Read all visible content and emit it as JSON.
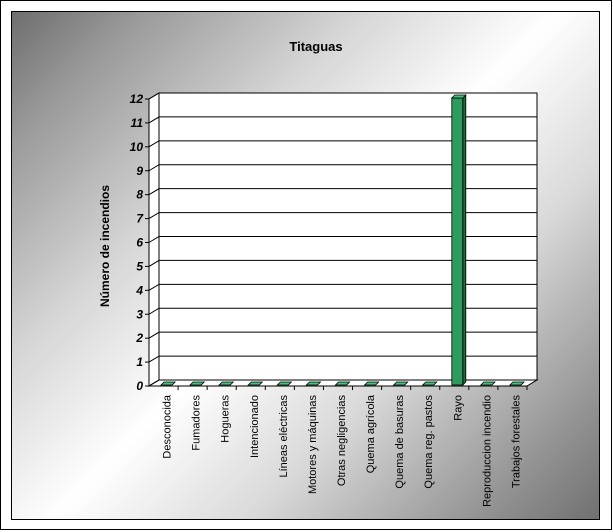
{
  "chart_data": {
    "type": "bar",
    "title": "Titaguas",
    "ylabel": "Número de incendios",
    "xlabel": "",
    "categories": [
      "Desconocida",
      "Fumadores",
      "Hogueras",
      "Intencionado",
      "Líneas eléctricas",
      "Motores y máquinas",
      "Otras negligencias",
      "Quema agrícola",
      "Quema de basuras",
      "Quema reg. pastos",
      "Rayo",
      "Reproduccion incendio",
      "Trabajos forestales"
    ],
    "values": [
      0,
      0,
      0,
      0,
      0,
      0,
      0,
      0,
      0,
      0,
      12,
      0,
      0
    ],
    "ylim": [
      0,
      12
    ],
    "yticks": [
      0,
      1,
      2,
      3,
      4,
      5,
      6,
      7,
      8,
      9,
      10,
      11,
      12
    ],
    "grid": true,
    "legend": "none",
    "colors": {
      "bar_face": "#2e9a5e",
      "bar_side": "#1d6e40",
      "bar_top": "#46c07c",
      "grid": "#000000"
    }
  }
}
